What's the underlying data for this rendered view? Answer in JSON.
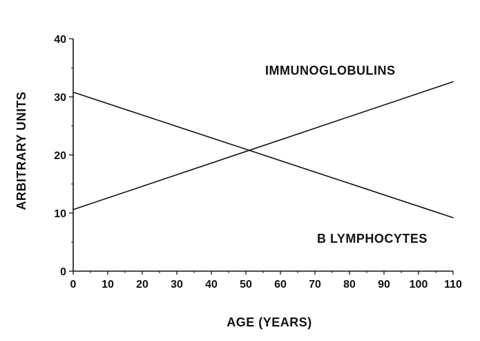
{
  "chart_data": {
    "type": "line",
    "title": "",
    "xlabel": "AGE (YEARS)",
    "ylabel": "ARBITRARY UNITS",
    "xlim": [
      0,
      110
    ],
    "ylim": [
      0,
      40
    ],
    "x_ticks": [
      "0",
      "10",
      "20",
      "30",
      "40",
      "50",
      "60",
      "70",
      "80",
      "90",
      "100",
      "110"
    ],
    "y_ticks": [
      "0",
      "10",
      "20",
      "30",
      "40"
    ],
    "grid": false,
    "legend": "none",
    "series": [
      {
        "name": "IMMUNOGLOBULINS",
        "x": [
          0,
          110
        ],
        "y": [
          10.6,
          32.6
        ],
        "color": "#111111"
      },
      {
        "name": "B LYMPHOCYTES",
        "x": [
          0,
          110
        ],
        "y": [
          30.8,
          9.2
        ],
        "color": "#111111"
      }
    ]
  }
}
